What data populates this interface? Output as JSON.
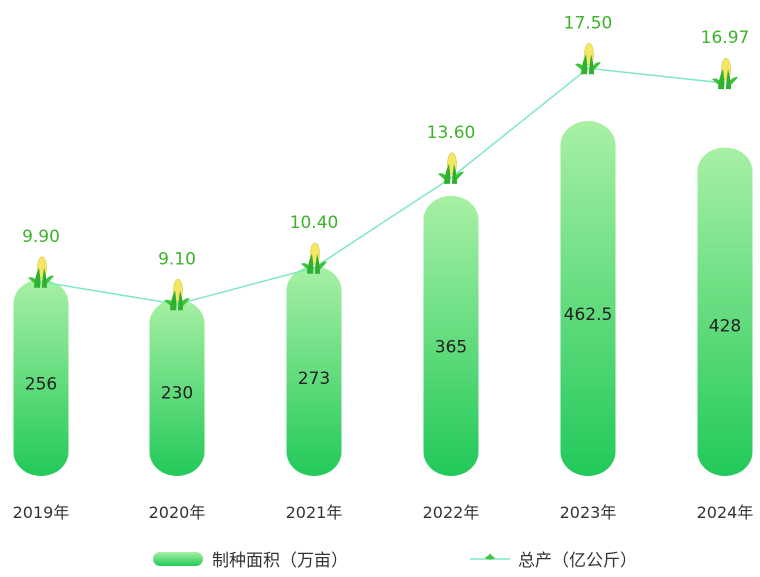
{
  "chart_data": {
    "type": "bar+line",
    "categories": [
      "2019年",
      "2020年",
      "2021年",
      "2022年",
      "2023年",
      "2024年"
    ],
    "series": [
      {
        "name": "制种面积（万亩）",
        "type": "bar",
        "values": [
          256,
          230,
          273,
          365,
          462.5,
          428
        ],
        "labels": [
          "256",
          "230",
          "273",
          "365",
          "462.5",
          "428"
        ]
      },
      {
        "name": "总产（亿公斤）",
        "type": "line",
        "values": [
          9.9,
          9.1,
          10.4,
          13.6,
          17.5,
          16.97
        ],
        "labels": [
          "9.90",
          "9.10",
          "10.40",
          "13.60",
          "17.50",
          "16.97"
        ]
      }
    ],
    "colors": {
      "bar_top": "#a8f0a4",
      "bar_bottom": "#22c95a",
      "line": "#7ee8c0",
      "line_label": "#3db32a",
      "corn": "#f5e663",
      "leaf": "#3cc43c"
    },
    "legend_position": "bottom",
    "grid": false
  }
}
